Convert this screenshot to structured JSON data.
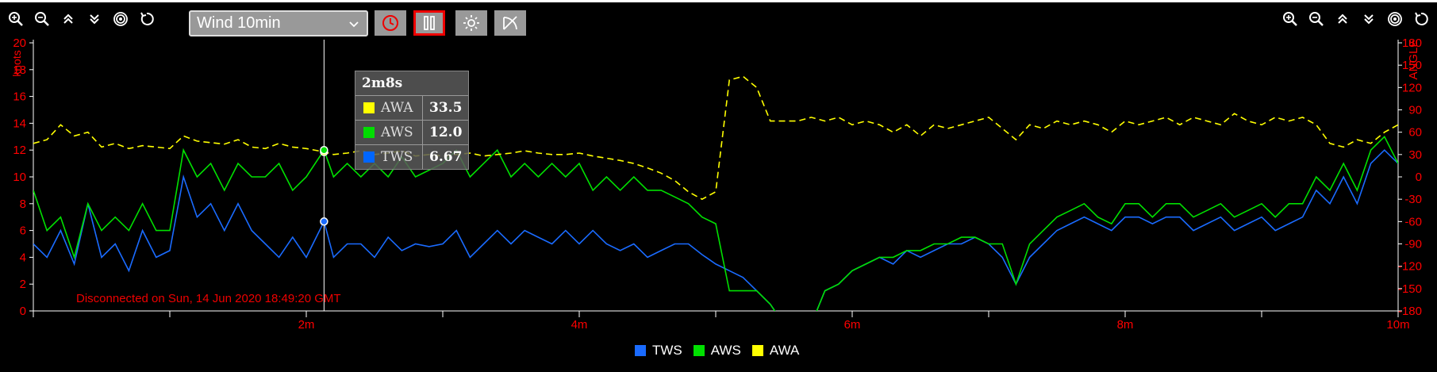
{
  "toolbar": {
    "left_icons": [
      "zoom-in-icon",
      "zoom-out-icon",
      "chevrons-up-icon",
      "chevrons-down-icon",
      "target-icon",
      "reset-icon"
    ],
    "right_icons": [
      "zoom-in-icon",
      "zoom-out-icon",
      "chevrons-up-icon",
      "chevrons-down-icon",
      "target-icon",
      "reset-icon"
    ],
    "dataset_select": "Wind 10min",
    "buttons": [
      "clock-icon",
      "pause-icon",
      "brightness-icon",
      "scale-icon"
    ]
  },
  "tooltip": {
    "title": "2m8s",
    "rows": [
      {
        "name": "AWA",
        "value": "33.5",
        "color": "#ffff00"
      },
      {
        "name": "AWS",
        "value": "12.0",
        "color": "#00dd00"
      },
      {
        "name": "TWS",
        "value": "6.67",
        "color": "#0066ff"
      }
    ]
  },
  "status": "Disconnected on Sun, 14 Jun 2020 18:49:20 GMT",
  "colors": {
    "TWS": "#1a6bff",
    "AWS": "#00e000",
    "AWA": "#ffff00",
    "axis": "#ff0000",
    "frame": "#ffffff"
  },
  "chart_data": {
    "type": "line",
    "xlabel": "",
    "x_unit": "minutes",
    "xlim": [
      0,
      10
    ],
    "x_ticks": [
      "2m",
      "4m",
      "6m",
      "8m",
      "10m"
    ],
    "ylabel": "knots",
    "ylim": [
      0,
      20
    ],
    "y_ticks": [
      "0",
      "2",
      "4",
      "6",
      "8",
      "10",
      "12",
      "14",
      "16",
      "18",
      "20"
    ],
    "y2label": "ANGLE",
    "y2lim": [
      -180,
      180
    ],
    "y2_ticks": [
      "-180",
      "-150",
      "-120",
      "-90",
      "-60",
      "-30",
      "0",
      "30",
      "60",
      "90",
      "120",
      "150",
      "180"
    ],
    "legend": "bottom-center",
    "crosshair_x": 2.13,
    "series": [
      {
        "name": "TWS",
        "axis": "left",
        "style": "solid",
        "x": [
          0,
          0.1,
          0.2,
          0.3,
          0.4,
          0.5,
          0.6,
          0.7,
          0.8,
          0.9,
          1.0,
          1.1,
          1.2,
          1.3,
          1.4,
          1.5,
          1.6,
          1.7,
          1.8,
          1.9,
          2.0,
          2.13,
          2.2,
          2.3,
          2.4,
          2.5,
          2.6,
          2.7,
          2.8,
          2.9,
          3.0,
          3.1,
          3.2,
          3.3,
          3.4,
          3.5,
          3.6,
          3.7,
          3.8,
          3.9,
          4.0,
          4.1,
          4.2,
          4.3,
          4.4,
          4.5,
          4.6,
          4.7,
          4.8,
          4.9,
          5.0,
          5.1,
          5.2,
          5.3,
          5.4,
          5.5,
          5.6,
          5.7,
          5.8,
          5.9,
          6.0,
          6.1,
          6.2,
          6.3,
          6.4,
          6.5,
          6.6,
          6.7,
          6.8,
          6.9,
          7.0,
          7.1,
          7.2,
          7.3,
          7.4,
          7.5,
          7.6,
          7.7,
          7.8,
          7.9,
          8.0,
          8.1,
          8.2,
          8.3,
          8.4,
          8.5,
          8.6,
          8.7,
          8.8,
          8.9,
          9.0,
          9.1,
          9.2,
          9.3,
          9.4,
          9.5,
          9.6,
          9.7,
          9.8,
          9.9,
          10.0
        ],
        "y": [
          5,
          4,
          6,
          3.5,
          8,
          4,
          5,
          3,
          6,
          4,
          4.5,
          10,
          7,
          8,
          6,
          8,
          6,
          5,
          4,
          5.5,
          4,
          6.67,
          4,
          5,
          5,
          4,
          5.5,
          4.5,
          5,
          4.8,
          5,
          6,
          4,
          5,
          6,
          5,
          6,
          5.5,
          5,
          6,
          5,
          6,
          5,
          4.5,
          5,
          4,
          4.5,
          5,
          5,
          4.2,
          3.5,
          3,
          2.5,
          1.5,
          0.5,
          -1,
          -2,
          -1,
          1.5,
          2,
          3,
          3.5,
          4,
          3.5,
          4.5,
          4,
          4.5,
          5,
          5,
          5.5,
          5,
          4,
          2,
          4,
          5,
          6,
          6.5,
          7,
          6.5,
          6,
          7,
          7,
          6.5,
          7,
          7,
          6,
          6.5,
          7,
          6,
          6.5,
          7,
          6,
          6.5,
          7,
          9,
          8,
          10,
          8,
          11,
          12,
          11
        ]
      },
      {
        "name": "AWS",
        "axis": "left",
        "style": "solid",
        "x": [
          0,
          0.1,
          0.2,
          0.3,
          0.4,
          0.5,
          0.6,
          0.7,
          0.8,
          0.9,
          1.0,
          1.1,
          1.2,
          1.3,
          1.4,
          1.5,
          1.6,
          1.7,
          1.8,
          1.9,
          2.0,
          2.13,
          2.2,
          2.3,
          2.4,
          2.5,
          2.6,
          2.7,
          2.8,
          2.9,
          3.0,
          3.1,
          3.2,
          3.3,
          3.4,
          3.5,
          3.6,
          3.7,
          3.8,
          3.9,
          4.0,
          4.1,
          4.2,
          4.3,
          4.4,
          4.5,
          4.6,
          4.7,
          4.8,
          4.9,
          5.0,
          5.1,
          5.2,
          5.3,
          5.4,
          5.5,
          5.6,
          5.7,
          5.8,
          5.9,
          6.0,
          6.1,
          6.2,
          6.3,
          6.4,
          6.5,
          6.6,
          6.7,
          6.8,
          6.9,
          7.0,
          7.1,
          7.2,
          7.3,
          7.4,
          7.5,
          7.6,
          7.7,
          7.8,
          7.9,
          8.0,
          8.1,
          8.2,
          8.3,
          8.4,
          8.5,
          8.6,
          8.7,
          8.8,
          8.9,
          9.0,
          9.1,
          9.2,
          9.3,
          9.4,
          9.5,
          9.6,
          9.7,
          9.8,
          9.9,
          10.0
        ],
        "y": [
          9,
          6,
          7,
          4,
          8,
          6,
          7,
          6,
          8,
          6,
          6,
          12,
          10,
          11,
          9,
          11,
          10,
          10,
          11,
          9,
          10,
          12.0,
          10,
          11,
          10,
          11,
          10,
          11.5,
          10,
          10.5,
          11,
          12,
          10,
          11,
          12,
          10,
          11,
          10,
          11,
          10,
          11,
          9,
          10,
          9,
          10,
          9,
          9,
          8.5,
          8,
          7,
          6.5,
          1.5,
          1.5,
          1.5,
          0.5,
          -1,
          -2,
          -1,
          1.5,
          2,
          3,
          3.5,
          4,
          4,
          4.5,
          4.5,
          5,
          5,
          5.5,
          5.5,
          5,
          5,
          2,
          5,
          6,
          7,
          7.5,
          8,
          7,
          6.5,
          8,
          8,
          7,
          8,
          8,
          7,
          7.5,
          8,
          7,
          7.5,
          8,
          7,
          8,
          8,
          10,
          9,
          11,
          9,
          12,
          13,
          11
        ]
      },
      {
        "name": "AWA",
        "axis": "right",
        "style": "dashed",
        "x": [
          0,
          0.1,
          0.2,
          0.3,
          0.4,
          0.5,
          0.6,
          0.7,
          0.8,
          0.9,
          1.0,
          1.1,
          1.2,
          1.3,
          1.4,
          1.5,
          1.6,
          1.7,
          1.8,
          1.9,
          2.0,
          2.13,
          2.2,
          2.3,
          2.4,
          2.5,
          2.6,
          2.7,
          2.8,
          2.9,
          3.0,
          3.1,
          3.2,
          3.3,
          3.4,
          3.5,
          3.6,
          3.7,
          3.8,
          3.9,
          4.0,
          4.1,
          4.2,
          4.3,
          4.4,
          4.5,
          4.6,
          4.7,
          4.8,
          4.9,
          5.0,
          5.1,
          5.2,
          5.3,
          5.4,
          5.5,
          5.6,
          5.7,
          5.8,
          5.9,
          6.0,
          6.1,
          6.2,
          6.3,
          6.4,
          6.5,
          6.6,
          6.7,
          6.8,
          6.9,
          7.0,
          7.1,
          7.2,
          7.3,
          7.4,
          7.5,
          7.6,
          7.7,
          7.8,
          7.9,
          8.0,
          8.1,
          8.2,
          8.3,
          8.4,
          8.5,
          8.6,
          8.7,
          8.8,
          8.9,
          9.0,
          9.1,
          9.2,
          9.3,
          9.4,
          9.5,
          9.6,
          9.7,
          9.8,
          9.9,
          10.0
        ],
        "y": [
          45,
          50,
          70,
          55,
          60,
          40,
          45,
          38,
          42,
          40,
          38,
          55,
          48,
          46,
          44,
          50,
          40,
          38,
          45,
          40,
          38,
          33.5,
          30,
          32,
          35,
          30,
          32,
          35,
          28,
          30,
          28,
          30,
          32,
          28,
          30,
          32,
          35,
          32,
          30,
          30,
          32,
          28,
          25,
          22,
          18,
          12,
          5,
          -5,
          -20,
          -30,
          -20,
          130,
          135,
          120,
          75,
          75,
          75,
          80,
          75,
          80,
          70,
          75,
          70,
          60,
          70,
          55,
          70,
          65,
          70,
          75,
          80,
          65,
          50,
          70,
          65,
          75,
          70,
          75,
          70,
          60,
          75,
          70,
          75,
          80,
          70,
          80,
          75,
          70,
          85,
          75,
          70,
          80,
          75,
          80,
          70,
          45,
          40,
          50,
          45,
          60,
          70
        ]
      }
    ]
  }
}
